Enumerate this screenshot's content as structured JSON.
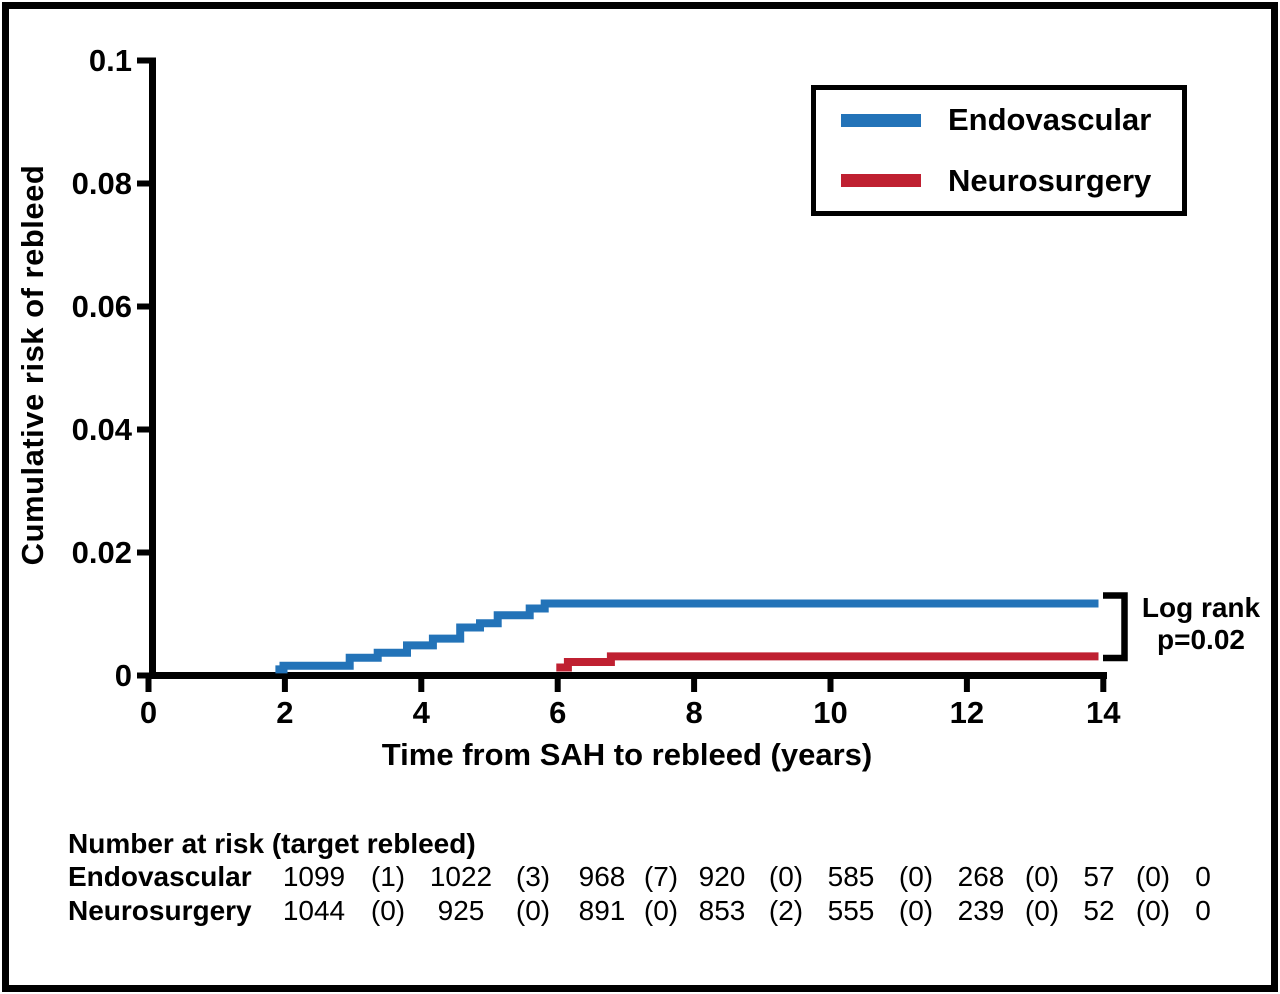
{
  "figure": {
    "y_axis_label": "Cumulative risk of rebleed",
    "x_axis_label": "Time from SAH to rebleed (years)",
    "legend": [
      {
        "label": "Endovascular",
        "color": "#2373b8"
      },
      {
        "label": "Neurosurgery",
        "color": "#bf2031"
      }
    ],
    "annotation": {
      "line1": "Log rank",
      "line2": "p=0.02"
    }
  },
  "chart_data": {
    "type": "line",
    "subtype": "kaplan-meier-step",
    "title": "",
    "xlabel": "Time from SAH to rebleed (years)",
    "ylabel": "Cumulative risk of rebleed",
    "xlim": [
      0,
      14
    ],
    "ylim": [
      0,
      0.1
    ],
    "x_ticks": [
      "0",
      "2",
      "4",
      "6",
      "8",
      "10",
      "12",
      "14"
    ],
    "y_ticks": [
      "0",
      "0.02",
      "0.04",
      "0.06",
      "0.08",
      "0.1"
    ],
    "grid": false,
    "legend_position": "top-right",
    "annotation": "Log rank p=0.02",
    "series": [
      {
        "name": "Endovascular",
        "color": "#2373b8",
        "points": [
          [
            1.86,
            0.001
          ],
          [
            1.98,
            0.0016
          ],
          [
            2.95,
            0.0029
          ],
          [
            3.36,
            0.0037
          ],
          [
            3.79,
            0.0049
          ],
          [
            4.17,
            0.006
          ],
          [
            4.57,
            0.0078
          ],
          [
            4.86,
            0.0085
          ],
          [
            5.12,
            0.0098
          ],
          [
            5.59,
            0.0109
          ],
          [
            5.81,
            0.0117
          ],
          [
            13.93,
            0.0117
          ]
        ]
      },
      {
        "name": "Neurosurgery",
        "color": "#bf2031",
        "points": [
          [
            5.98,
            0.0013
          ],
          [
            6.15,
            0.0022
          ],
          [
            6.78,
            0.0031
          ],
          [
            13.93,
            0.0031
          ]
        ]
      }
    ]
  },
  "risk_table": {
    "title": "Number at risk (target rebleed)",
    "rows": [
      {
        "label": "Endovascular",
        "values": [
          "1099",
          "(1)",
          "1022",
          "(3)",
          "968",
          "(7)",
          "920",
          "(0)",
          "585",
          "(0)",
          "268",
          "(0)",
          "57",
          "(0)",
          "0"
        ]
      },
      {
        "label": "Neurosurgery",
        "values": [
          "1044",
          "(0)",
          "925",
          "(0)",
          "891",
          "(0)",
          "853",
          "(2)",
          "555",
          "(0)",
          "239",
          "(0)",
          "52",
          "(0)",
          "0"
        ]
      }
    ]
  }
}
